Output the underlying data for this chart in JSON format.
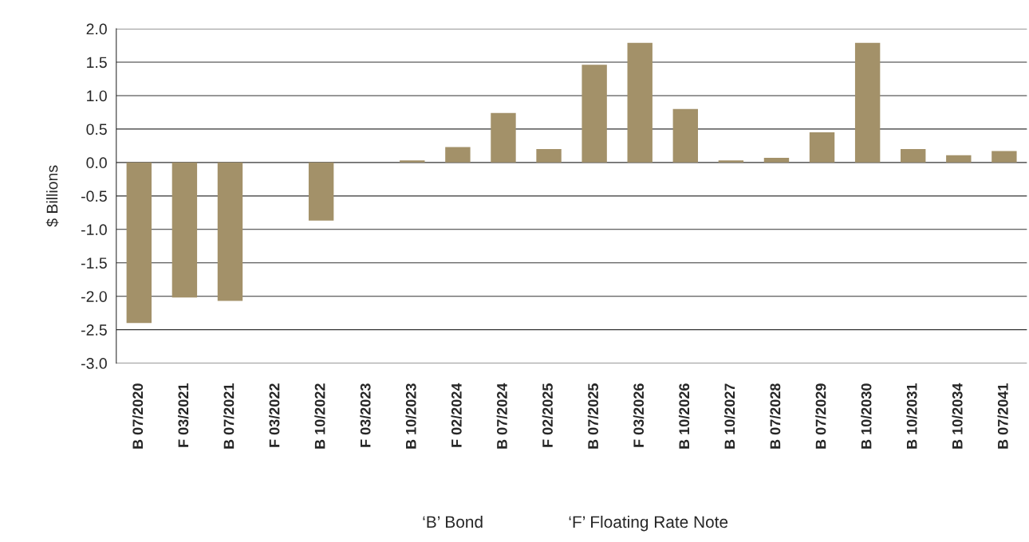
{
  "chart_data": {
    "type": "bar",
    "ylabel": "$ Billions",
    "categories": [
      "B 07/2020",
      "F 03/2021",
      "B 07/2021",
      "F 03/2022",
      "B 10/2022",
      "F 03/2023",
      "B 10/2023",
      "F 02/2024",
      "B 07/2024",
      "F 02/2025",
      "B 07/2025",
      "F 03/2026",
      "B 10/2026",
      "B 10/2027",
      "B 07/2028",
      "B 07/2029",
      "B 10/2030",
      "B 10/2031",
      "B 10/2034",
      "B 07/2041"
    ],
    "values": [
      -2.4,
      -2.02,
      -2.07,
      null,
      -0.87,
      null,
      0.03,
      0.23,
      0.74,
      0.2,
      1.46,
      1.79,
      0.8,
      0.03,
      0.07,
      0.45,
      1.79,
      0.2,
      0.11,
      0.17
    ],
    "color": "#a39169",
    "ylim": [
      -3.0,
      2.0
    ],
    "yticks": [
      {
        "value": 2.0,
        "label": "2.0"
      },
      {
        "value": 1.5,
        "label": "1.5"
      },
      {
        "value": 1.0,
        "label": "1.0"
      },
      {
        "value": 0.5,
        "label": "0.5"
      },
      {
        "value": 0.0,
        "label": "0.0"
      },
      {
        "value": -0.5,
        "label": "-0.5"
      },
      {
        "value": -1.0,
        "label": "-1.0"
      },
      {
        "value": -1.5,
        "label": "-1.5"
      },
      {
        "value": -2.0,
        "label": "-2.0"
      },
      {
        "value": -2.5,
        "label": "-2.5"
      },
      {
        "value": -3.0,
        "label": "-3.0"
      }
    ],
    "grid": "y",
    "legend": false,
    "annotations": [
      "‘B’ Bond",
      "‘F’ Floating Rate Note"
    ]
  }
}
